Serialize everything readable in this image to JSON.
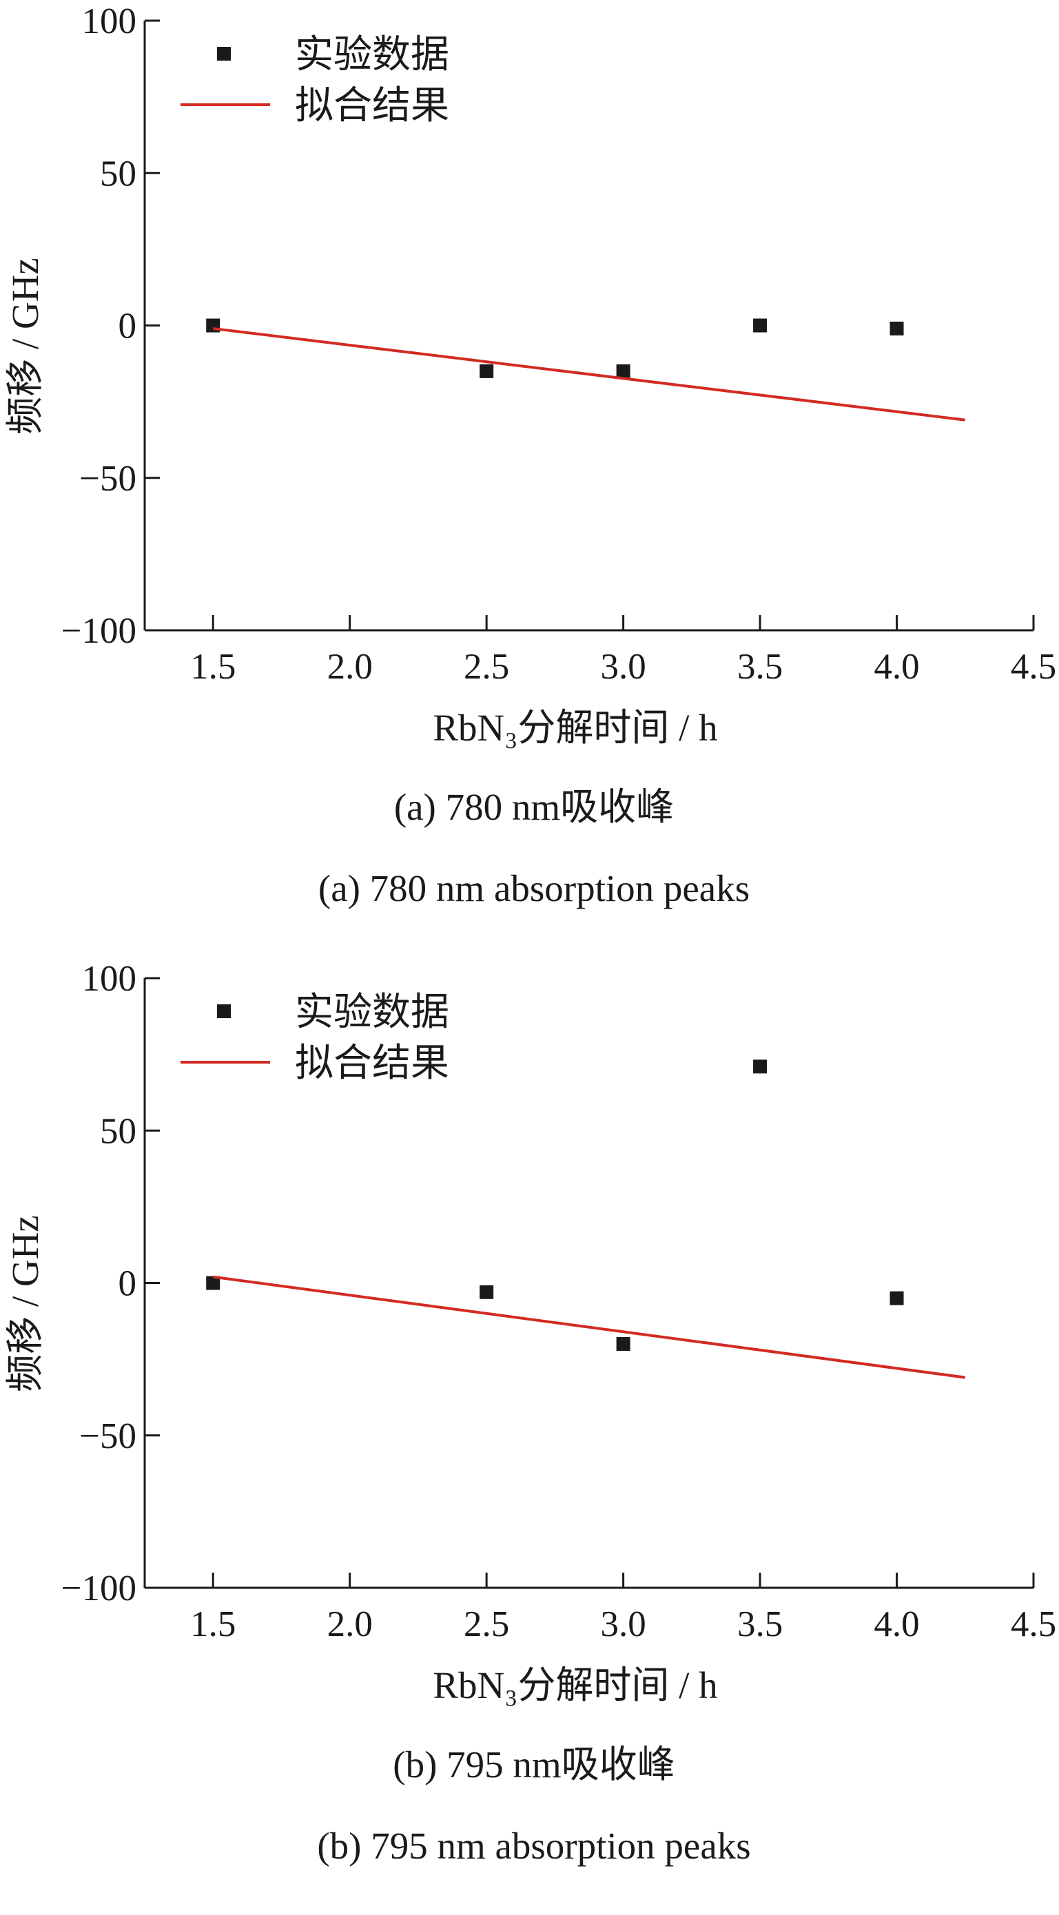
{
  "chart_data": [
    {
      "type": "scatter",
      "panel_id": "a",
      "xlabel": "RbN₃分解时间 / h",
      "ylabel": "频移 / GHz",
      "xlim": [
        1.25,
        4.5
      ],
      "ylim": [
        -100,
        100
      ],
      "xticks": [
        "1.5",
        "2.0",
        "2.5",
        "3.0",
        "3.5",
        "4.0",
        "4.5"
      ],
      "xtick_values": [
        1.5,
        2.0,
        2.5,
        3.0,
        3.5,
        4.0,
        4.5
      ],
      "yticks": [
        "100",
        "50",
        "0",
        "−50",
        "−100"
      ],
      "ytick_values": [
        100,
        50,
        0,
        -50,
        -100
      ],
      "series": [
        {
          "name": "实验数据",
          "kind": "scatter",
          "color": "#1a1a1a",
          "x": [
            1.5,
            2.5,
            3.0,
            3.5,
            4.0
          ],
          "y": [
            0,
            -15,
            -15,
            0,
            -1
          ]
        },
        {
          "name": "拟合结果",
          "kind": "line",
          "color": "#d42a22",
          "x": [
            1.5,
            4.25
          ],
          "y": [
            -1,
            -31
          ]
        }
      ],
      "legend_position": "top-left",
      "grid": false,
      "caption_cn": "(a) 780 nm吸收峰",
      "caption_en": "(a) 780 nm absorption peaks"
    },
    {
      "type": "scatter",
      "panel_id": "b",
      "xlabel": "RbN₃分解时间 / h",
      "ylabel": "频移 / GHz",
      "xlim": [
        1.25,
        4.5
      ],
      "ylim": [
        -100,
        100
      ],
      "xticks": [
        "1.5",
        "2.0",
        "2.5",
        "3.0",
        "3.5",
        "4.0",
        "4.5"
      ],
      "xtick_values": [
        1.5,
        2.0,
        2.5,
        3.0,
        3.5,
        4.0,
        4.5
      ],
      "yticks": [
        "100",
        "50",
        "0",
        "−50",
        "−100"
      ],
      "ytick_values": [
        100,
        50,
        0,
        -50,
        -100
      ],
      "series": [
        {
          "name": "实验数据",
          "kind": "scatter",
          "color": "#1a1a1a",
          "x": [
            1.5,
            2.5,
            3.0,
            3.5,
            4.0
          ],
          "y": [
            0,
            -3,
            -20,
            71,
            -5
          ]
        },
        {
          "name": "拟合结果",
          "kind": "line",
          "color": "#d42a22",
          "x": [
            1.5,
            4.25
          ],
          "y": [
            2,
            -31
          ]
        }
      ],
      "legend_position": "top-left",
      "grid": false,
      "caption_cn": "(b) 795 nm吸收峰",
      "caption_en": "(b) 795 nm absorption peaks"
    }
  ]
}
